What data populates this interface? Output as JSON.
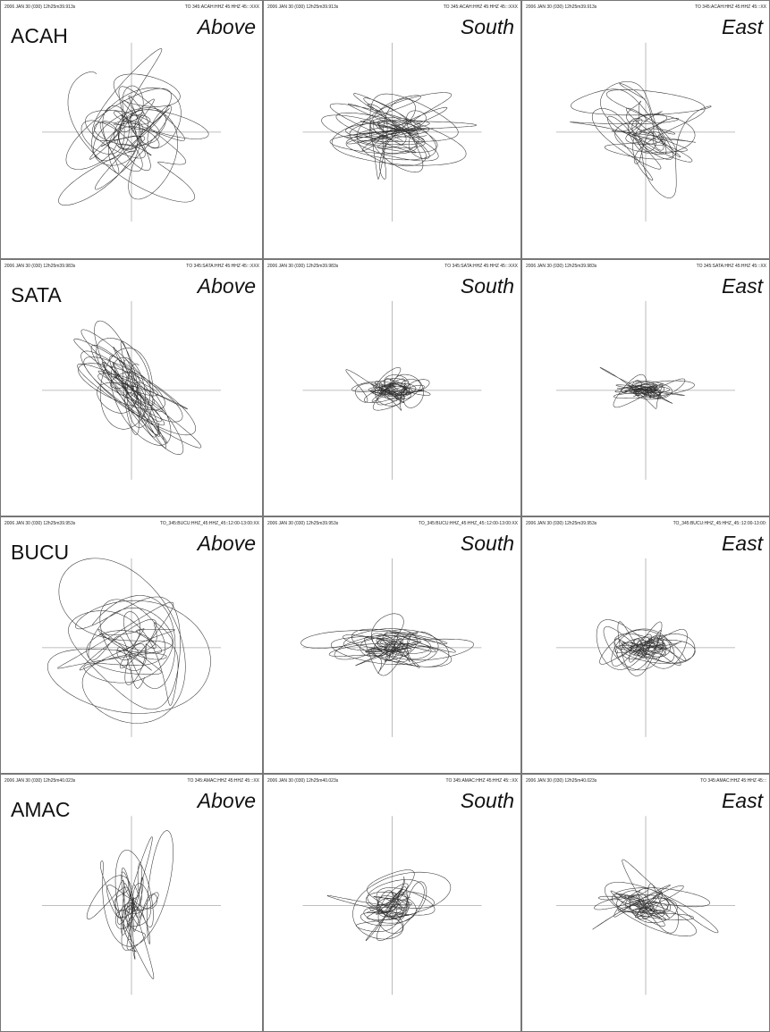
{
  "rows": [
    {
      "station": "ACAH",
      "panels": [
        {
          "time": "2006 JAN 30 (030) 12h25m39.913s",
          "channel": "TO 345:ACAH:HHZ 45:HHZ 45:::XXX",
          "view": "Above"
        },
        {
          "time": "2006 JAN 30 (030) 12h25m39.913s",
          "channel": "TO 345:ACAH:HHZ 45:HHZ 45:::XXX",
          "view": "South"
        },
        {
          "time": "2006 JAN 30 (030) 12h25m39.913s",
          "channel": "TO 345:ACAH:HHZ 45:HHZ 45:::XX",
          "view": "East"
        }
      ]
    },
    {
      "station": "SATA",
      "panels": [
        {
          "time": "2006 JAN 30 (030) 12h25m39.983s",
          "channel": "TO 345:SATA:HHZ 45:HHZ 45:::XXX",
          "view": "Above"
        },
        {
          "time": "2006 JAN 30 (030) 12h25m39.983s",
          "channel": "TO 345:SATA:HHZ 45:HHZ 45:::XXX",
          "view": "South"
        },
        {
          "time": "2006 JAN 30 (030) 12h25m39.983s",
          "channel": "TO 345:SATA:HHZ 45:HHZ 45:::XX",
          "view": "East"
        }
      ]
    },
    {
      "station": "BUCU",
      "panels": [
        {
          "time": "2006 JAN 30 (030) 12h25m39.953s",
          "channel": "TO_345:BUCU:HHZ_45:HHZ_45::12:00-13:00:XX",
          "view": "Above"
        },
        {
          "time": "2006 JAN 30 (030) 12h25m39.953s",
          "channel": "TO_345:BUCU:HHZ_45:HHZ_45::12:00-13:00:XX",
          "view": "South"
        },
        {
          "time": "2006 JAN 30 (030) 12h25m39.953s",
          "channel": "TO_345:BUCU:HHZ_45:HHZ_45::12:00-13:00:",
          "view": "East"
        }
      ]
    },
    {
      "station": "AMAC",
      "panels": [
        {
          "time": "2006 JAN 30 (030) 12h25m40.023s",
          "channel": "TO 345:AMAC:HHZ 45:HHZ 45:::XX",
          "view": "Above"
        },
        {
          "time": "2006 JAN 30 (030) 12h25m40.023s",
          "channel": "TO 345:AMAC:HHZ 45:HHZ 45:::XX",
          "view": "South"
        },
        {
          "time": "2006 JAN 30 (030) 12h25m40.023s",
          "channel": "TO 345:AMAC:HHZ 45:HHZ 45:::",
          "view": "East"
        }
      ]
    }
  ]
}
